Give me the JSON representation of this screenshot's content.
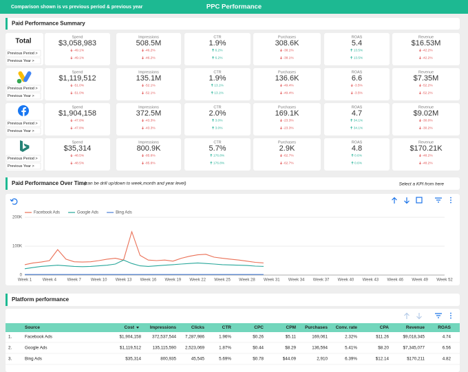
{
  "header": {
    "note": "Comparison shown is vs previous period & previous year",
    "title": "PPC Performance"
  },
  "summary": {
    "title": "Paid Performance Summary",
    "rows": [
      {
        "label": "Total",
        "comparisons": [
          "Previous Period >",
          "Previous Year >"
        ],
        "metrics": [
          {
            "name": "Spend",
            "value": "$3,058,983",
            "changes": [
              "-49.1%",
              "-49.1%"
            ]
          },
          {
            "name": "Impressions",
            "value": "508.5M",
            "changes": [
              "-46.2%",
              "-46.2%"
            ]
          },
          {
            "name": "CTR",
            "value": "1.9%",
            "changes": [
              "6.2%",
              "6.2%"
            ]
          },
          {
            "name": "Purchases",
            "value": "308.6K",
            "changes": [
              "-38.1%",
              "-38.1%"
            ]
          },
          {
            "name": "ROAS",
            "value": "5.4",
            "changes": [
              "13.5%",
              "13.5%"
            ]
          },
          {
            "name": "Revenue",
            "value": "$16.53M",
            "changes": [
              "-42.2%",
              "-42.2%"
            ]
          }
        ]
      },
      {
        "comparisons": [
          "Previous Period >",
          "Previous Year >"
        ],
        "metrics": [
          {
            "name": "Spend",
            "value": "$1,119,512",
            "changes": [
              "-51.0%",
              "-51.0%"
            ]
          },
          {
            "name": "Impressions",
            "value": "135.1M",
            "changes": [
              "-52.1%",
              "-52.1%"
            ]
          },
          {
            "name": "CTR",
            "value": "1.9%",
            "changes": [
              "13.1%",
              "13.1%"
            ]
          },
          {
            "name": "Purchases",
            "value": "136.6K",
            "changes": [
              "-49.4%",
              "-49.4%"
            ]
          },
          {
            "name": "ROAS",
            "value": "6.6",
            "changes": [
              "-3.5%",
              "-3.5%"
            ]
          },
          {
            "name": "Revenue",
            "value": "$7.35M",
            "changes": [
              "-52.2%",
              "-52.2%"
            ]
          }
        ]
      },
      {
        "comparisons": [
          "Previous Period >",
          "Previous Year >"
        ],
        "metrics": [
          {
            "name": "Spend",
            "value": "$1,904,158",
            "changes": [
              "-47.8%",
              "-47.8%"
            ]
          },
          {
            "name": "Impressions",
            "value": "372.5M",
            "changes": [
              "-43.3%",
              "-43.3%"
            ]
          },
          {
            "name": "CTR",
            "value": "2.0%",
            "changes": [
              "3.0%",
              "3.0%"
            ]
          },
          {
            "name": "Purchases",
            "value": "169.1K",
            "changes": [
              "-23.3%",
              "-23.3%"
            ]
          },
          {
            "name": "ROAS",
            "value": "4.7",
            "changes": [
              "34.1%",
              "34.1%"
            ]
          },
          {
            "name": "Revenue",
            "value": "$9.02M",
            "changes": [
              "-30.0%",
              "-30.2%"
            ]
          }
        ]
      },
      {
        "comparisons": [
          "Previous Period >",
          "Previous Year >"
        ],
        "metrics": [
          {
            "name": "Spend",
            "value": "$35,314",
            "changes": [
              "-48.5%",
              "-48.5%"
            ]
          },
          {
            "name": "Impressions",
            "value": "800.9K",
            "changes": [
              "-85.6%",
              "-85.6%"
            ]
          },
          {
            "name": "CTR",
            "value": "5.7%",
            "changes": [
              "176.8%",
              "176.8%"
            ]
          },
          {
            "name": "Purchases",
            "value": "2.9K",
            "changes": [
              "-62.7%",
              "-62.7%"
            ]
          },
          {
            "name": "ROAS",
            "value": "4.8",
            "changes": [
              "0.6%",
              "0.6%"
            ]
          },
          {
            "name": "Revenue",
            "value": "$170.21K",
            "changes": [
              "-48.2%",
              "-48.2%"
            ]
          }
        ]
      }
    ]
  },
  "chart_data": {
    "type": "line",
    "title": "Paid Performance Over Time",
    "subtitle": "(can be drill up/down to week,month and year level)",
    "note": "Select a KPI from here",
    "categories": [
      "Week 1",
      null,
      null,
      "Week 4",
      null,
      null,
      "Week 7",
      null,
      null,
      "Week 10",
      null,
      null,
      "Week 13",
      null,
      null,
      "Week 16",
      null,
      null,
      "Week 19",
      null,
      null,
      "Week 22",
      null,
      null,
      "Week 25",
      null,
      null,
      "Week 28",
      null,
      null,
      "Week 31",
      null,
      null,
      "Week 34",
      null,
      null,
      "Week 37",
      null,
      null,
      "Week 40",
      null,
      null,
      "Week 43",
      null,
      null,
      "Week 46",
      null,
      null,
      "Week 49",
      null,
      null,
      "Week 52"
    ],
    "series": [
      {
        "name": "Facebook Ads",
        "color": "#ea6f55",
        "values": [
          36000,
          42000,
          45000,
          50000,
          88000,
          55000,
          46000,
          45000,
          46000,
          50000,
          55000,
          58000,
          52000,
          150000,
          68000,
          52000,
          50000,
          52000,
          48000,
          58000,
          65000,
          70000,
          72000,
          62000,
          58000,
          55000,
          52000,
          48000,
          44000,
          42000,
          null,
          null,
          null,
          null,
          null,
          null,
          null,
          null,
          null,
          null,
          null,
          null,
          null,
          null,
          null,
          null,
          null,
          null,
          null,
          null,
          null,
          null
        ]
      },
      {
        "name": "Google Ads",
        "color": "#26a69a",
        "values": [
          22000,
          26000,
          30000,
          32000,
          34000,
          32000,
          30000,
          29000,
          30000,
          32000,
          34000,
          38000,
          52000,
          40000,
          32000,
          30000,
          32000,
          34000,
          36000,
          38000,
          40000,
          42000,
          40000,
          38000,
          36000,
          35000,
          34000,
          33000,
          31000,
          30000,
          null,
          null,
          null,
          null,
          null,
          null,
          null,
          null,
          null,
          null,
          null,
          null,
          null,
          null,
          null,
          null,
          null,
          null,
          null,
          null,
          null,
          null
        ]
      },
      {
        "name": "Bing Ads",
        "color": "#4a7fd4",
        "values": [
          2000,
          2000,
          2000,
          2000,
          2000,
          2000,
          2000,
          2000,
          2000,
          2000,
          2000,
          2000,
          2000,
          2000,
          2000,
          2000,
          2000,
          2000,
          2000,
          2000,
          2000,
          2000,
          2000,
          2000,
          2000,
          2000,
          2000,
          2000,
          2000,
          2000,
          null,
          null,
          null,
          null,
          null,
          null,
          null,
          null,
          null,
          null,
          null,
          null,
          null,
          null,
          null,
          null,
          null,
          null,
          null,
          null,
          null,
          null
        ]
      }
    ],
    "ylim": [
      0,
      200000
    ],
    "yticks": [
      0,
      {
        "value": 100000,
        "label": "100K"
      },
      {
        "value": 200000,
        "label": "200K"
      }
    ],
    "grid": true
  },
  "table": {
    "title": "Platform performance",
    "columns": [
      "Source",
      "Cost",
      "Impressions",
      "Clicks",
      "CTR",
      "CPC",
      "CPM",
      "Purchases",
      "Conv. rate",
      "CPA",
      "Revenue",
      "ROAS"
    ],
    "rows": [
      {
        "index": "1.",
        "cells": [
          "Facebook Ads",
          "$1,904,158",
          "372,537,544",
          "7,287,986",
          "1.96%",
          "$0.26",
          "$5.11",
          "169,061",
          "2.32%",
          "$11.26",
          "$9,018,345",
          "4.74"
        ]
      },
      {
        "index": "2.",
        "cells": [
          "Google Ads",
          "$1,119,512",
          "135,115,590",
          "2,523,069",
          "1.87%",
          "$0.44",
          "$8.29",
          "136,594",
          "5.41%",
          "$8.20",
          "$7,345,077",
          "6.56"
        ]
      },
      {
        "index": "3.",
        "cells": [
          "Bing Ads",
          "$35,314",
          "800,935",
          "45,545",
          "5.69%",
          "$0.78",
          "$44.09",
          "2,910",
          "6.39%",
          "$12.14",
          "$170,211",
          "4.82"
        ]
      }
    ]
  }
}
